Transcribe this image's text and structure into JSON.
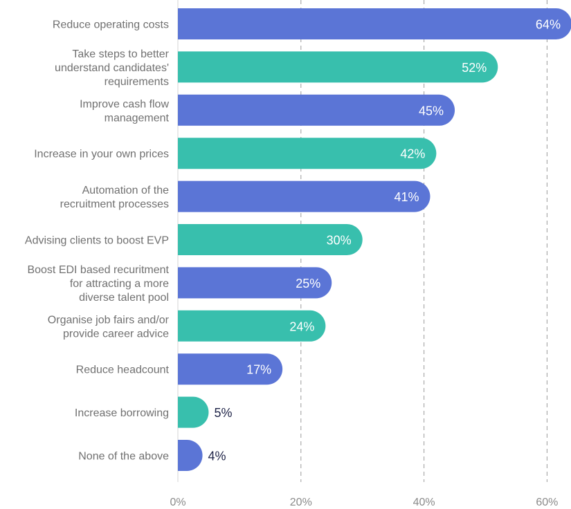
{
  "chart_data": {
    "type": "bar",
    "orientation": "horizontal",
    "title": "",
    "xlabel": "",
    "ylabel": "",
    "xlim": [
      0,
      64
    ],
    "x_ticks": [
      0,
      20,
      40,
      60
    ],
    "x_tick_labels": [
      "0%",
      "20%",
      "40%",
      "60%"
    ],
    "grid": true,
    "legend": "none",
    "value_suffix": "%",
    "colors": {
      "blue": "#5b75d6",
      "teal": "#38bfad"
    },
    "categories": [
      [
        "Reduce operating costs"
      ],
      [
        "Take steps to better",
        "understand candidates'",
        "requirements"
      ],
      [
        "Improve cash flow",
        "management"
      ],
      [
        "Increase in your own prices"
      ],
      [
        "Automation of the",
        "recruitment processes"
      ],
      [
        "Advising clients to boost EVP"
      ],
      [
        "Boost EDI based recuritment",
        "for attracting a more",
        "diverse talent pool"
      ],
      [
        "Organise job fairs and/or",
        "provide career advice"
      ],
      [
        "Reduce headcount"
      ],
      [
        "Increase borrowing"
      ],
      [
        "None of the above"
      ]
    ],
    "values": [
      64,
      52,
      45,
      42,
      41,
      30,
      25,
      24,
      17,
      5,
      4
    ],
    "value_labels": [
      "64%",
      "52%",
      "45%",
      "42%",
      "41%",
      "30%",
      "25%",
      "24%",
      "17%",
      "5%",
      "4%"
    ],
    "bar_colors": [
      "blue",
      "teal",
      "blue",
      "teal",
      "blue",
      "teal",
      "blue",
      "teal",
      "blue",
      "teal",
      "blue"
    ]
  }
}
